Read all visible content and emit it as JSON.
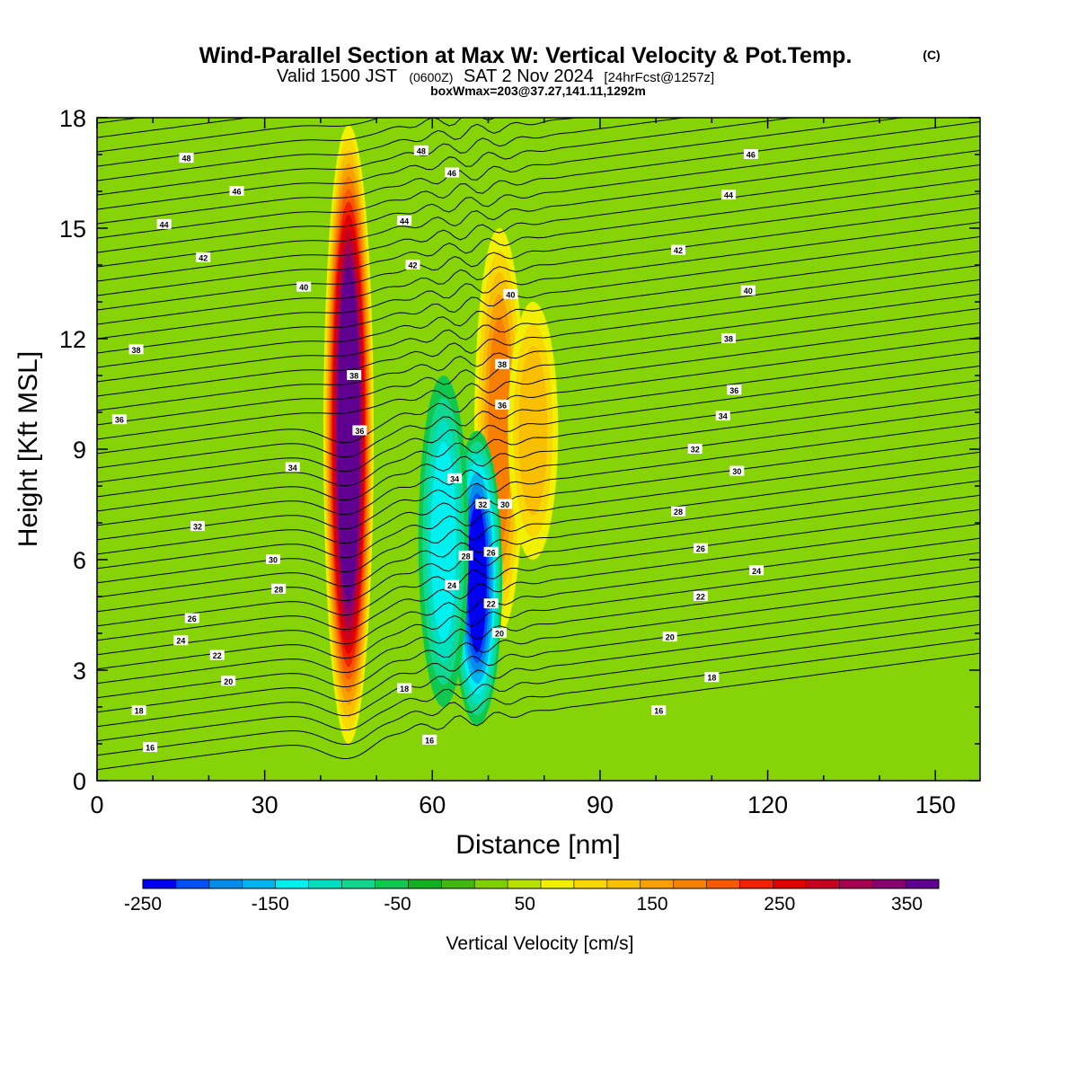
{
  "chart_data": {
    "type": "heatmap",
    "title": {
      "main": "Wind-Parallel Section at Max W: Vertical Velocity & Pot.Temp.",
      "main_suffix": "(C)",
      "line2_a": "Valid 1500 JST",
      "line2_b": "(0600Z)",
      "line2_c": "SAT 2 Nov 2024",
      "line2_d": "[24hrFcst@1257z]",
      "line3": "boxWmax=203@37.27,141.11,1292m"
    },
    "xlabel": "Distance [nm]",
    "ylabel": "Height [Kft MSL]",
    "xlim": [
      0,
      158
    ],
    "ylim": [
      0,
      18
    ],
    "x_ticks": [
      0,
      30,
      60,
      90,
      120,
      150
    ],
    "y_ticks": [
      0,
      3,
      6,
      9,
      12,
      15,
      18
    ],
    "colorbar": {
      "label": "Vertical Velocity [cm/s]",
      "min": -250,
      "max": 375,
      "step": 25,
      "tick_labels": [
        "-250",
        "-150",
        "-50",
        "50",
        "150",
        "250",
        "350"
      ],
      "tick_values": [
        -250,
        -150,
        -50,
        50,
        150,
        250,
        350
      ],
      "colors": [
        "#0000f0",
        "#0050f8",
        "#008ce8",
        "#00b4f0",
        "#00f0f0",
        "#00e0c0",
        "#10d890",
        "#10c850",
        "#10b020",
        "#40b810",
        "#80d000",
        "#b8e000",
        "#f0f000",
        "#f8d800",
        "#f8c000",
        "#f8a000",
        "#f88000",
        "#f85800",
        "#f02000",
        "#e00000",
        "#c80020",
        "#a80050",
        "#880070",
        "#600090"
      ]
    },
    "updrafts": [
      {
        "x": 45,
        "y_bottom": 1.0,
        "y_top": 17.8,
        "peak": 380
      },
      {
        "x": 72,
        "y_bottom": 4.0,
        "y_top": 15.0,
        "peak": 150
      },
      {
        "x": 78,
        "y_bottom": 6.0,
        "y_top": 13.0,
        "peak": 120
      }
    ],
    "downdrafts": [
      {
        "x": 68,
        "y_bottom": 1.5,
        "y_top": 9.5,
        "peak": -240
      },
      {
        "x": 62,
        "y_bottom": 2.0,
        "y_top": 11.0,
        "peak": -130
      }
    ],
    "contour_labels": [
      {
        "text": "48",
        "x": 16.0,
        "y": 16.9
      },
      {
        "text": "46",
        "x": 25.0,
        "y": 16.0
      },
      {
        "text": "44",
        "x": 12.0,
        "y": 15.1
      },
      {
        "text": "42",
        "x": 19.0,
        "y": 14.2
      },
      {
        "text": "40",
        "x": 37.0,
        "y": 13.4
      },
      {
        "text": "38",
        "x": 7.0,
        "y": 11.7
      },
      {
        "text": "38",
        "x": 46.0,
        "y": 11.0
      },
      {
        "text": "36",
        "x": 4.0,
        "y": 9.8
      },
      {
        "text": "36",
        "x": 47.0,
        "y": 9.5
      },
      {
        "text": "34",
        "x": 35.0,
        "y": 8.5
      },
      {
        "text": "32",
        "x": 18.0,
        "y": 6.9
      },
      {
        "text": "30",
        "x": 31.5,
        "y": 6.0
      },
      {
        "text": "28",
        "x": 32.5,
        "y": 5.2
      },
      {
        "text": "26",
        "x": 17.0,
        "y": 4.4
      },
      {
        "text": "24",
        "x": 15.0,
        "y": 3.8
      },
      {
        "text": "22",
        "x": 21.5,
        "y": 3.4
      },
      {
        "text": "20",
        "x": 23.5,
        "y": 2.7
      },
      {
        "text": "18",
        "x": 7.5,
        "y": 1.9
      },
      {
        "text": "16",
        "x": 9.5,
        "y": 0.9
      },
      {
        "text": "18",
        "x": 55.0,
        "y": 2.5
      },
      {
        "text": "16",
        "x": 59.5,
        "y": 1.1
      },
      {
        "text": "48",
        "x": 58.0,
        "y": 17.1
      },
      {
        "text": "46",
        "x": 63.5,
        "y": 16.5
      },
      {
        "text": "44",
        "x": 55.0,
        "y": 15.2
      },
      {
        "text": "42",
        "x": 56.5,
        "y": 14.0
      },
      {
        "text": "40",
        "x": 74.0,
        "y": 13.2
      },
      {
        "text": "38",
        "x": 72.5,
        "y": 11.3
      },
      {
        "text": "36",
        "x": 72.5,
        "y": 10.2
      },
      {
        "text": "34",
        "x": 64.0,
        "y": 8.2
      },
      {
        "text": "32",
        "x": 69.0,
        "y": 7.5
      },
      {
        "text": "30",
        "x": 73.0,
        "y": 7.5
      },
      {
        "text": "28",
        "x": 66.0,
        "y": 6.1
      },
      {
        "text": "26",
        "x": 70.5,
        "y": 6.2
      },
      {
        "text": "24",
        "x": 63.5,
        "y": 5.3
      },
      {
        "text": "22",
        "x": 70.5,
        "y": 4.8
      },
      {
        "text": "20",
        "x": 72.0,
        "y": 4.0
      },
      {
        "text": "46",
        "x": 117.0,
        "y": 17.0
      },
      {
        "text": "44",
        "x": 113.0,
        "y": 15.9
      },
      {
        "text": "42",
        "x": 104.0,
        "y": 14.4
      },
      {
        "text": "40",
        "x": 116.5,
        "y": 13.3
      },
      {
        "text": "38",
        "x": 113.0,
        "y": 12.0
      },
      {
        "text": "36",
        "x": 114.0,
        "y": 10.6
      },
      {
        "text": "34",
        "x": 112.0,
        "y": 9.9
      },
      {
        "text": "32",
        "x": 107.0,
        "y": 9.0
      },
      {
        "text": "30",
        "x": 114.5,
        "y": 8.4
      },
      {
        "text": "28",
        "x": 104.0,
        "y": 7.3
      },
      {
        "text": "26",
        "x": 108.0,
        "y": 6.3
      },
      {
        "text": "24",
        "x": 118.0,
        "y": 5.7
      },
      {
        "text": "22",
        "x": 108.0,
        "y": 5.0
      },
      {
        "text": "20",
        "x": 102.5,
        "y": 3.9
      },
      {
        "text": "18",
        "x": 110.0,
        "y": 2.8
      },
      {
        "text": "16",
        "x": 100.5,
        "y": 1.9
      }
    ]
  }
}
